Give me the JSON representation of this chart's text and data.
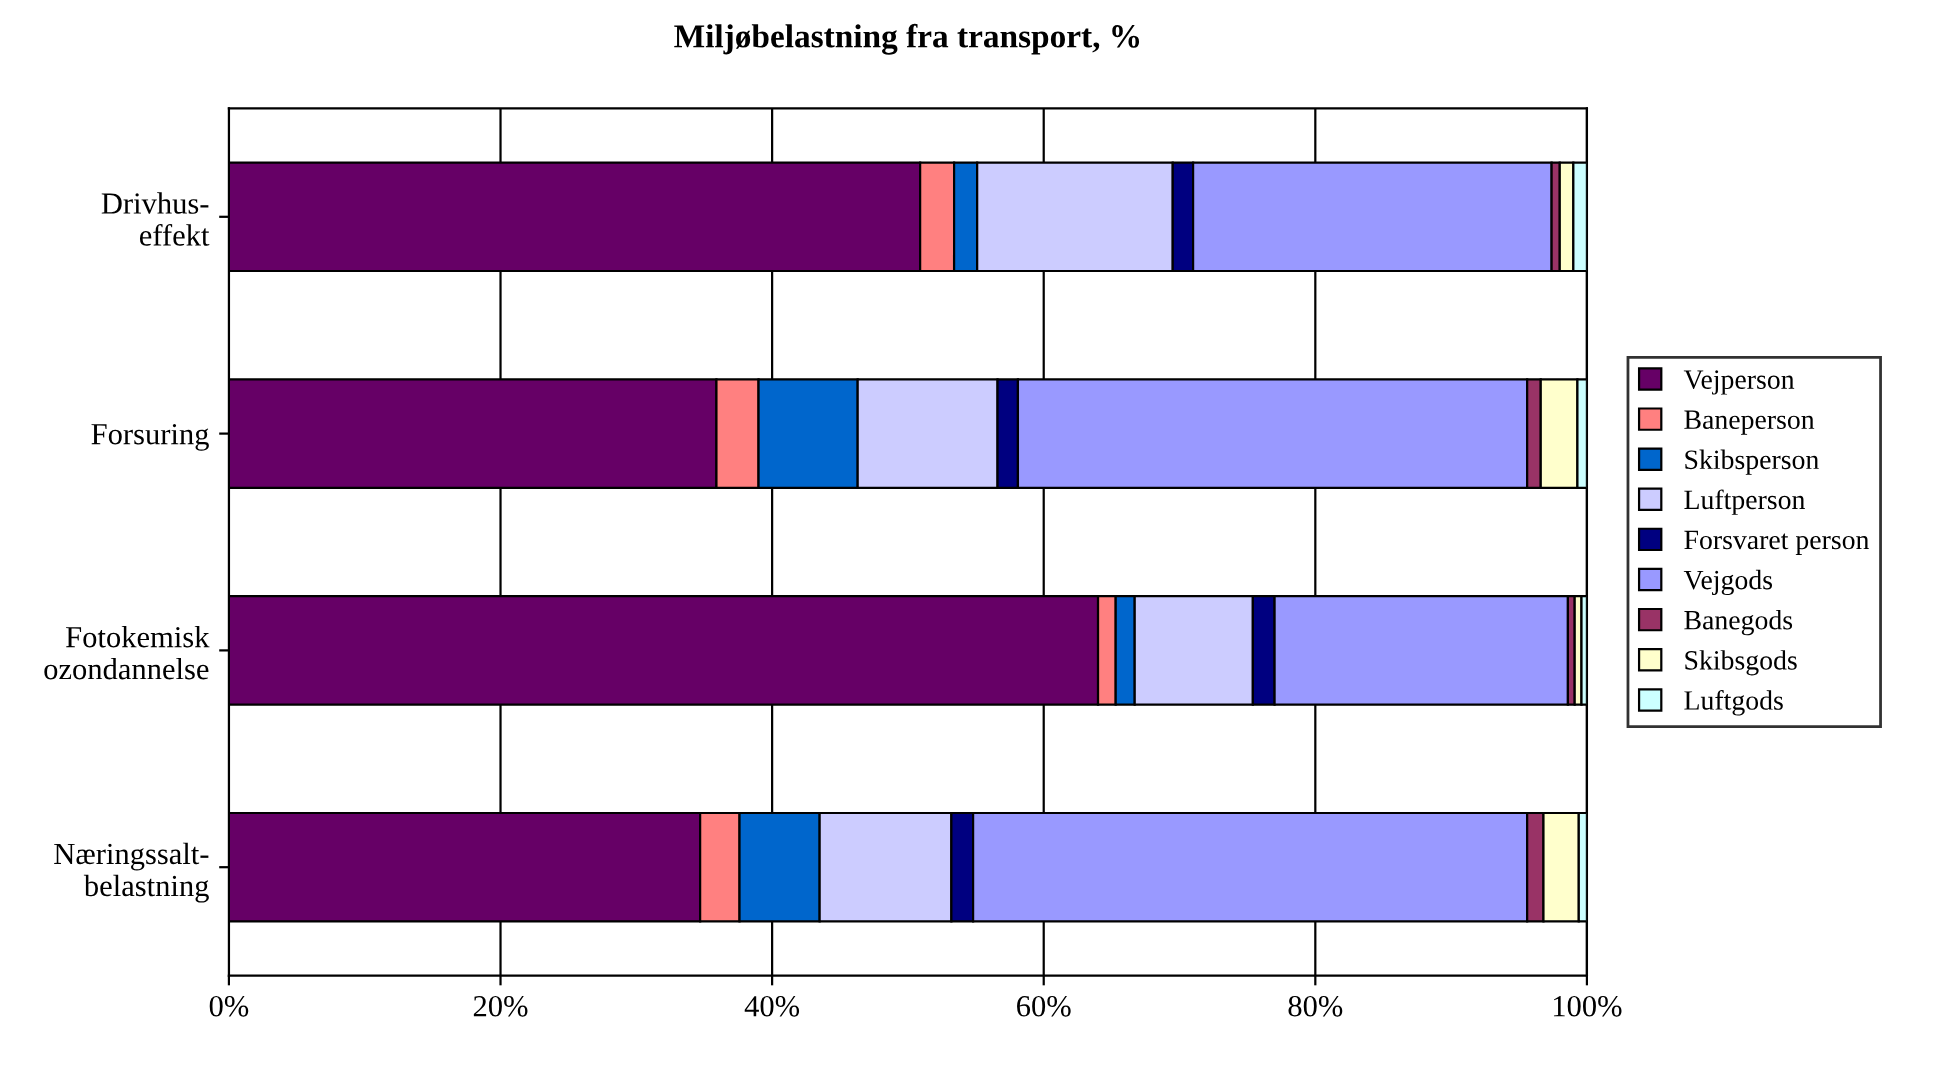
{
  "chart_data": {
    "type": "bar",
    "orientation": "horizontal",
    "stacked": true,
    "title": "Miljøbelastning fra transport, %",
    "categories": [
      "Drivhus-\neffekt",
      "Forsuring",
      "Fotokemisk\nozondannelse",
      "Næringssalt-\nbelastning"
    ],
    "series": [
      {
        "name": "Vejperson",
        "color": "#660066",
        "values": [
          50.9,
          35.9,
          64.0,
          34.7
        ]
      },
      {
        "name": "Baneperson",
        "color": "#ff8080",
        "values": [
          2.5,
          3.1,
          1.3,
          2.9
        ]
      },
      {
        "name": "Skibsperson",
        "color": "#0066cc",
        "values": [
          1.7,
          7.3,
          1.4,
          5.9
        ]
      },
      {
        "name": "Luftperson",
        "color": "#ccccff",
        "values": [
          14.4,
          10.3,
          8.7,
          9.7
        ]
      },
      {
        "name": "Forsvaret person",
        "color": "#000080",
        "values": [
          1.5,
          1.5,
          1.6,
          1.6
        ]
      },
      {
        "name": "Vejgods",
        "color": "#9999ff",
        "values": [
          26.4,
          37.5,
          21.6,
          40.8
        ]
      },
      {
        "name": "Banegods",
        "color": "#993366",
        "values": [
          0.6,
          1.0,
          0.5,
          1.2
        ]
      },
      {
        "name": "Skibsgods",
        "color": "#ffffcc",
        "values": [
          1.0,
          2.7,
          0.5,
          2.6
        ]
      },
      {
        "name": "Luftgods",
        "color": "#ccffff",
        "values": [
          1.0,
          0.7,
          0.4,
          0.6
        ]
      }
    ],
    "xlim": [
      0,
      100
    ],
    "xticks": [
      {
        "value": 0,
        "label": "0%"
      },
      {
        "value": 20,
        "label": "20%"
      },
      {
        "value": 40,
        "label": "40%"
      },
      {
        "value": 60,
        "label": "60%"
      },
      {
        "value": 80,
        "label": "80%"
      },
      {
        "value": 100,
        "label": "100%"
      }
    ],
    "grid": "x",
    "legend": "right"
  }
}
